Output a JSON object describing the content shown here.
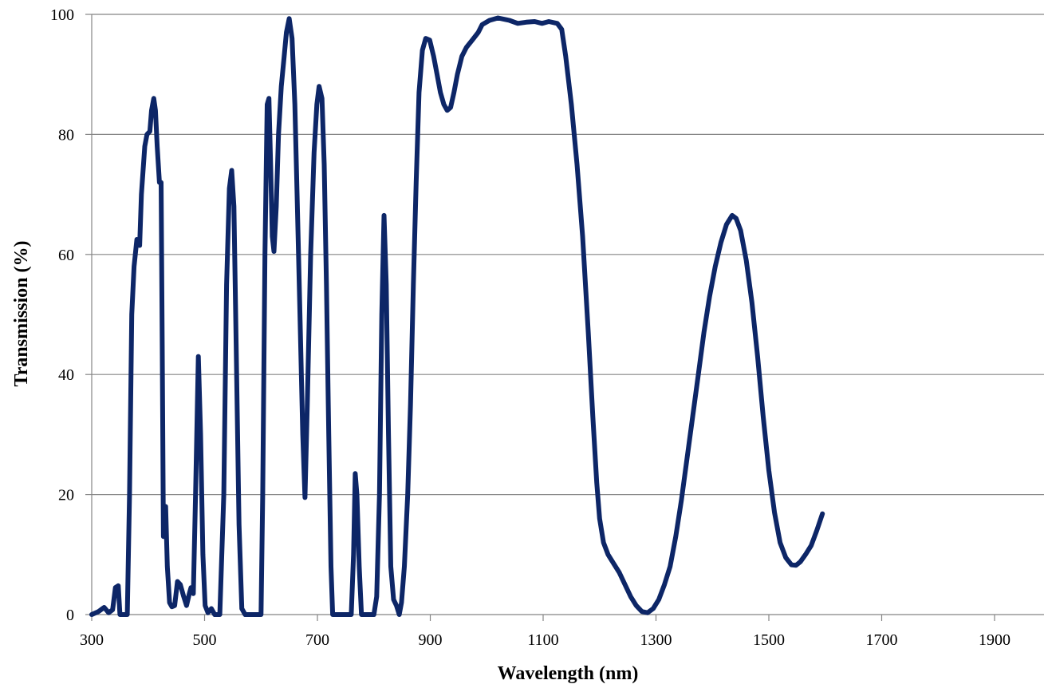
{
  "chart_data": {
    "type": "line",
    "title": "",
    "xlabel": "Wavelength (nm)",
    "ylabel": "Transmission (%)",
    "xlim": [
      300,
      1980
    ],
    "ylim": [
      0,
      100
    ],
    "x_ticks": [
      300,
      500,
      700,
      900,
      1100,
      1300,
      1500,
      1700,
      1900
    ],
    "y_ticks": [
      0,
      20,
      40,
      60,
      80,
      100
    ],
    "grid": "horizontal",
    "legend": "none",
    "series": [
      {
        "color": "#0d2667",
        "points": [
          [
            300,
            0
          ],
          [
            312,
            0.5
          ],
          [
            322,
            1.2
          ],
          [
            330,
            0.3
          ],
          [
            337,
            0.8
          ],
          [
            342,
            4.5
          ],
          [
            347,
            4.8
          ],
          [
            350,
            0
          ],
          [
            358,
            0
          ],
          [
            363,
            0
          ],
          [
            367,
            20
          ],
          [
            371,
            50
          ],
          [
            375,
            58
          ],
          [
            380,
            62.5
          ],
          [
            385,
            61.5
          ],
          [
            388,
            70
          ],
          [
            394,
            78
          ],
          [
            398,
            80
          ],
          [
            403,
            80.5
          ],
          [
            406,
            84
          ],
          [
            410,
            86
          ],
          [
            413,
            84
          ],
          [
            416,
            78
          ],
          [
            420,
            72
          ],
          [
            423,
            72
          ],
          [
            425,
            45
          ],
          [
            427,
            13
          ],
          [
            431,
            18
          ],
          [
            434,
            8
          ],
          [
            438,
            2
          ],
          [
            442,
            1.3
          ],
          [
            447,
            1.5
          ],
          [
            452,
            5.5
          ],
          [
            457,
            5
          ],
          [
            463,
            3
          ],
          [
            468,
            1.5
          ],
          [
            473,
            3.5
          ],
          [
            476,
            4.5
          ],
          [
            480,
            3.5
          ],
          [
            484,
            20
          ],
          [
            489,
            43
          ],
          [
            493,
            30
          ],
          [
            497,
            10
          ],
          [
            501,
            1.5
          ],
          [
            506,
            0.3
          ],
          [
            512,
            1
          ],
          [
            518,
            0
          ],
          [
            527,
            0
          ],
          [
            534,
            20
          ],
          [
            539,
            55
          ],
          [
            544,
            71
          ],
          [
            548,
            74
          ],
          [
            552,
            68
          ],
          [
            556,
            45
          ],
          [
            561,
            15
          ],
          [
            566,
            1
          ],
          [
            572,
            0
          ],
          [
            600,
            0
          ],
          [
            603,
            20
          ],
          [
            607,
            60
          ],
          [
            611,
            85
          ],
          [
            614,
            86
          ],
          [
            617,
            75
          ],
          [
            620,
            63
          ],
          [
            623,
            60.5
          ],
          [
            627,
            68
          ],
          [
            631,
            80
          ],
          [
            636,
            88
          ],
          [
            641,
            93
          ],
          [
            645,
            97
          ],
          [
            650,
            99.3
          ],
          [
            655,
            96
          ],
          [
            660,
            85
          ],
          [
            664,
            70
          ],
          [
            669,
            50
          ],
          [
            674,
            30
          ],
          [
            678,
            19.5
          ],
          [
            682,
            35
          ],
          [
            688,
            60
          ],
          [
            694,
            77
          ],
          [
            699,
            85
          ],
          [
            703,
            88
          ],
          [
            708,
            86
          ],
          [
            712,
            75
          ],
          [
            716,
            55
          ],
          [
            720,
            30
          ],
          [
            724,
            8
          ],
          [
            727,
            0
          ],
          [
            760,
            0
          ],
          [
            764,
            10
          ],
          [
            767,
            23.5
          ],
          [
            770,
            20
          ],
          [
            774,
            8
          ],
          [
            778,
            0
          ],
          [
            800,
            0
          ],
          [
            805,
            3
          ],
          [
            810,
            20
          ],
          [
            814,
            50
          ],
          [
            818,
            66.5
          ],
          [
            822,
            55
          ],
          [
            826,
            30
          ],
          [
            830,
            8
          ],
          [
            835,
            2.5
          ],
          [
            840,
            1.5
          ],
          [
            845,
            0
          ],
          [
            849,
            2
          ],
          [
            854,
            8
          ],
          [
            860,
            20
          ],
          [
            865,
            35
          ],
          [
            870,
            55
          ],
          [
            875,
            72
          ],
          [
            880,
            87
          ],
          [
            886,
            94
          ],
          [
            892,
            96
          ],
          [
            899,
            95.7
          ],
          [
            906,
            93
          ],
          [
            912,
            90
          ],
          [
            918,
            87
          ],
          [
            924,
            85
          ],
          [
            930,
            84
          ],
          [
            936,
            84.5
          ],
          [
            942,
            87
          ],
          [
            948,
            90
          ],
          [
            956,
            93
          ],
          [
            964,
            94.5
          ],
          [
            975,
            95.8
          ],
          [
            985,
            97
          ],
          [
            992,
            98.3
          ],
          [
            1005,
            99
          ],
          [
            1020,
            99.4
          ],
          [
            1040,
            99
          ],
          [
            1055,
            98.5
          ],
          [
            1070,
            98.7
          ],
          [
            1085,
            98.8
          ],
          [
            1098,
            98.5
          ],
          [
            1110,
            98.8
          ],
          [
            1125,
            98.5
          ],
          [
            1133,
            97.5
          ],
          [
            1140,
            93
          ],
          [
            1150,
            85
          ],
          [
            1160,
            75
          ],
          [
            1170,
            63
          ],
          [
            1180,
            47
          ],
          [
            1188,
            33
          ],
          [
            1195,
            22
          ],
          [
            1200,
            16
          ],
          [
            1207,
            12
          ],
          [
            1215,
            10
          ],
          [
            1225,
            8.5
          ],
          [
            1235,
            7
          ],
          [
            1245,
            5
          ],
          [
            1255,
            3
          ],
          [
            1265,
            1.5
          ],
          [
            1275,
            0.5
          ],
          [
            1285,
            0.3
          ],
          [
            1295,
            1
          ],
          [
            1305,
            2.5
          ],
          [
            1315,
            5
          ],
          [
            1325,
            8
          ],
          [
            1335,
            13
          ],
          [
            1345,
            19
          ],
          [
            1355,
            26
          ],
          [
            1365,
            33
          ],
          [
            1375,
            40
          ],
          [
            1385,
            47
          ],
          [
            1395,
            53
          ],
          [
            1405,
            58
          ],
          [
            1415,
            62
          ],
          [
            1425,
            65
          ],
          [
            1435,
            66.5
          ],
          [
            1442,
            66
          ],
          [
            1450,
            64
          ],
          [
            1460,
            59
          ],
          [
            1470,
            52
          ],
          [
            1480,
            43
          ],
          [
            1490,
            33
          ],
          [
            1500,
            24
          ],
          [
            1510,
            17
          ],
          [
            1520,
            12
          ],
          [
            1530,
            9.5
          ],
          [
            1540,
            8.3
          ],
          [
            1548,
            8.2
          ],
          [
            1556,
            8.8
          ],
          [
            1565,
            10
          ],
          [
            1575,
            11.5
          ],
          [
            1585,
            14
          ],
          [
            1595,
            16.8
          ]
        ]
      }
    ]
  }
}
